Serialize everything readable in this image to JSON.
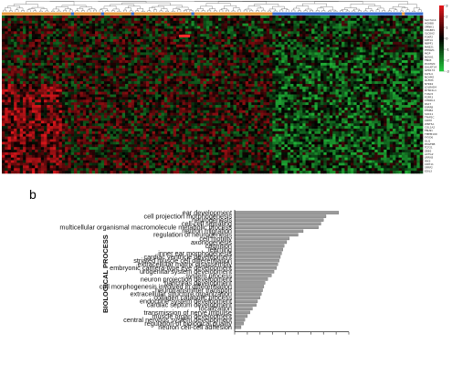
{
  "heatmap": {
    "gene_labels": [
      "SLC7A14",
      "HOXB8",
      "SPINK1",
      "CRABP1",
      "SLC6A2",
      "FOXP2",
      "KRT14",
      "NBPF1",
      "MAB21",
      "PTPRZ1",
      "MGP",
      "NOVA1",
      "FBN3",
      "PCDH20",
      "GALNT14",
      "GPR174",
      "KLHL4",
      "NCAM2",
      "OLFM3",
      "NTRK2",
      "LDLRAD4",
      "DYNC1L1",
      "TUSC5",
      "FGFR3",
      "CHRDL1",
      "PAX7",
      "ESRRB",
      "EFNB2",
      "SOX11",
      "TFAP2C",
      "CRYM",
      "WNT5A",
      "COL1A2",
      "FBLN1",
      "TMEM100",
      "FXYD6",
      "GLI1",
      "PDGFRB",
      "TCF21",
      "ZEB2",
      "ACTG2",
      "LRRN3",
      "IRX3",
      "CDH11",
      "SFRP2",
      "EDIL3"
    ],
    "color_scale": {
      "ticks": [
        3,
        2,
        1,
        0,
        -1,
        -2,
        -3
      ],
      "colors": {
        "high": "#e0161b",
        "mid": "#000000",
        "low": "#23c43c"
      }
    },
    "group_colors": {
      "group_a": "#e89a3c",
      "group_b": "#3a6fcf"
    }
  },
  "panel_b": {
    "letter": "b"
  },
  "chart_data": {
    "type": "bar",
    "orientation": "horizontal",
    "ylabel": "BIOLOGICAL PROCESS",
    "xlabel": "",
    "categories": [
      "ear development",
      "cell projection morphogenesis",
      "neurogenesis",
      "cell-cell signaling",
      "multicellular organismal macromolecule metabolic process",
      "neuron migration",
      "regulation of neurogenesis",
      "cell motility",
      "axonogenesis",
      "cognition",
      "learning",
      "inner ear morphogenesis",
      "cardiac ventricle development",
      "striated muscle cell differentiation",
      "extracellular matrix disassembly",
      "embryonic camera-type eye development",
      "urogenital system development",
      "system process",
      "neuron projection development",
      "pancreas development",
      "cell morphogenesis involved in differentiation",
      "neurotransmitter transport",
      "extracellular structure organization",
      "collagen catabolic process",
      "endocrine system development",
      "cardiac septum development",
      "localization",
      "transmission of nerve impulse",
      "muscle organ development",
      "central nervous system development",
      "regulation of biological quality",
      "neuron cell-cell adhesion"
    ],
    "values": [
      8.2,
      7.2,
      7.0,
      6.8,
      6.6,
      5.4,
      5.0,
      4.3,
      4.1,
      3.9,
      3.8,
      3.7,
      3.6,
      3.5,
      3.4,
      3.3,
      3.1,
      2.9,
      2.6,
      2.4,
      2.3,
      2.2,
      2.1,
      2.0,
      1.8,
      1.7,
      1.4,
      1.2,
      1.0,
      0.8,
      0.7,
      0.5
    ],
    "xlim": [
      0,
      9
    ],
    "x_ticks": [
      0,
      1,
      2,
      3,
      4,
      5,
      6,
      7,
      8,
      9
    ],
    "x_tick_labels_visible": false,
    "bar_color": "#9a9a9a"
  }
}
